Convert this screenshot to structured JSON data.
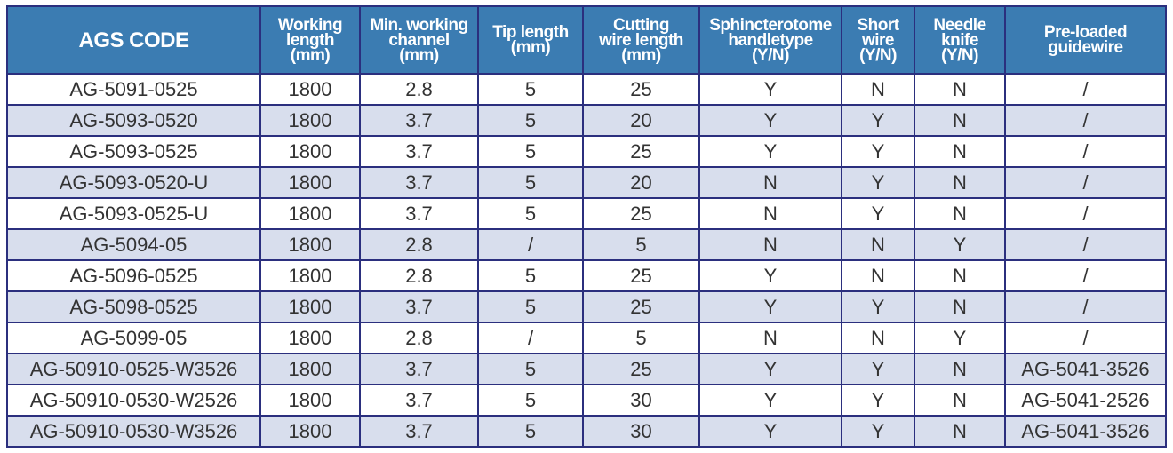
{
  "table": {
    "headers": [
      [
        "AGS CODE"
      ],
      [
        "Working",
        "length",
        "(mm)"
      ],
      [
        "Min. working",
        "channel",
        "(mm)"
      ],
      [
        "Tip length",
        "(mm)"
      ],
      [
        "Cutting",
        "wire length",
        "(mm)"
      ],
      [
        "Sphincterotome",
        "handletype",
        "(Y/N)"
      ],
      [
        "Short",
        "wire",
        "(Y/N)"
      ],
      [
        "Needle",
        "knife",
        "(Y/N)"
      ],
      [
        "Pre-loaded",
        "guidewire"
      ]
    ],
    "rows": [
      [
        "AG-5091-0525",
        "1800",
        "2.8",
        "5",
        "25",
        "Y",
        "N",
        "N",
        "/"
      ],
      [
        "AG-5093-0520",
        "1800",
        "3.7",
        "5",
        "20",
        "Y",
        "Y",
        "N",
        "/"
      ],
      [
        "AG-5093-0525",
        "1800",
        "3.7",
        "5",
        "25",
        "Y",
        "Y",
        "N",
        "/"
      ],
      [
        "AG-5093-0520-U",
        "1800",
        "3.7",
        "5",
        "20",
        "N",
        "Y",
        "N",
        "/"
      ],
      [
        "AG-5093-0525-U",
        "1800",
        "3.7",
        "5",
        "25",
        "N",
        "Y",
        "N",
        "/"
      ],
      [
        "AG-5094-05",
        "1800",
        "2.8",
        "/",
        "5",
        "N",
        "N",
        "Y",
        "/"
      ],
      [
        "AG-5096-0525",
        "1800",
        "2.8",
        "5",
        "25",
        "Y",
        "N",
        "N",
        "/"
      ],
      [
        "AG-5098-0525",
        "1800",
        "3.7",
        "5",
        "25",
        "Y",
        "Y",
        "N",
        "/"
      ],
      [
        "AG-5099-05",
        "1800",
        "2.8",
        "/",
        "5",
        "N",
        "N",
        "Y",
        "/"
      ],
      [
        "AG-50910-0525-W3526",
        "1800",
        "3.7",
        "5",
        "25",
        "Y",
        "Y",
        "N",
        "AG-5041-3526"
      ],
      [
        "AG-50910-0530-W2526",
        "1800",
        "3.7",
        "5",
        "30",
        "Y",
        "Y",
        "N",
        "AG-5041-2526"
      ],
      [
        "AG-50910-0530-W3526",
        "1800",
        "3.7",
        "5",
        "30",
        "Y",
        "Y",
        "N",
        "AG-5041-3526"
      ]
    ]
  },
  "colors": {
    "header_bg": "#3b7cb2",
    "alt_row_bg": "#d8deed",
    "border": "#2b2f7e"
  }
}
